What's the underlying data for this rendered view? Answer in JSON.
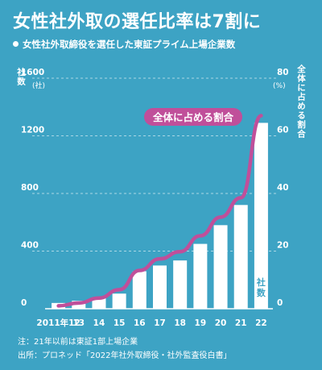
{
  "title": "女性社外取の選任比率は7割に",
  "subtitle": "女性社外取締役を選任した東証プライム上場企業数",
  "notes": [
    "注：21年以前は東証1部上場企業",
    "出所：プロネッド「2022年社外取締役・社外監査役白書」"
  ],
  "colors": {
    "background": "#3da3c4",
    "bars": "#ffffff",
    "line": "#c04f9a",
    "text": "#ffffff"
  },
  "chart_data": {
    "type": "bar",
    "categories": [
      "2011年12",
      "13",
      "14",
      "15",
      "16",
      "17",
      "18",
      "19",
      "20",
      "21",
      "22"
    ],
    "series": [
      {
        "name": "社数",
        "type": "bar",
        "axis": "left",
        "values": [
          40,
          55,
          75,
          105,
          260,
          300,
          335,
          450,
          580,
          720,
          1290
        ]
      },
      {
        "name": "全体に占める割合",
        "type": "line",
        "axis": "right",
        "values": [
          1.0,
          2.0,
          3.7,
          6.6,
          13.3,
          17.3,
          19.8,
          25.3,
          31.8,
          38.5,
          67.0
        ]
      }
    ],
    "left_axis": {
      "label": "社数",
      "unit": "(社)",
      "ylim": [
        0,
        1600
      ],
      "ticks": [
        0,
        400,
        800,
        1200,
        1600
      ]
    },
    "right_axis": {
      "label": "全体に占める割合",
      "unit": "(%)",
      "ylim": [
        0,
        80
      ],
      "ticks": [
        0,
        20,
        40,
        60,
        80
      ]
    },
    "line_label": "全体に占める割合",
    "bar_label": "社数",
    "grid": true
  }
}
